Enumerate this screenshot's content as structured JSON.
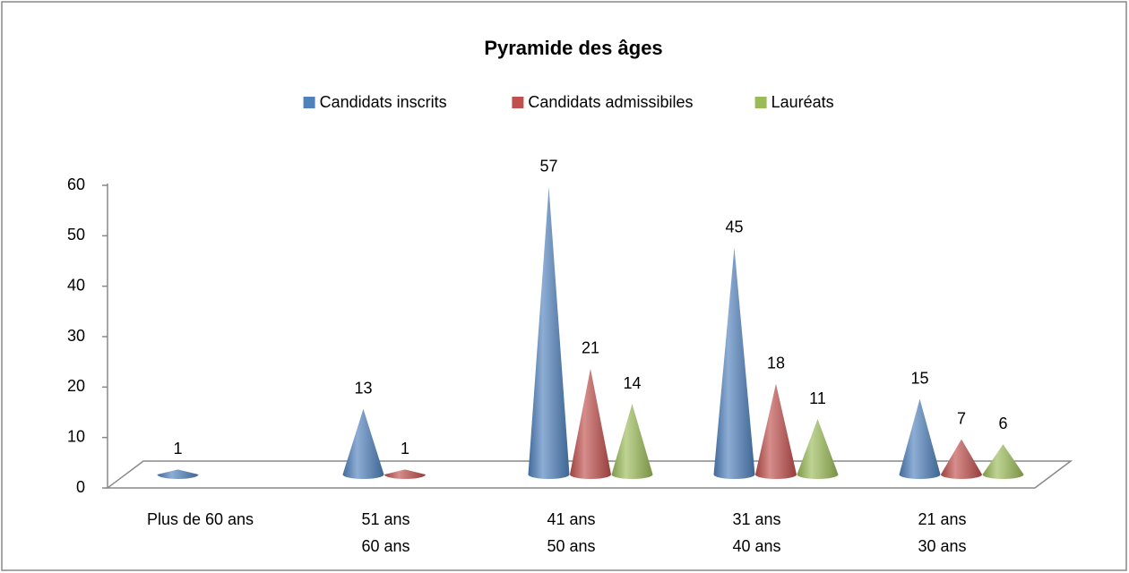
{
  "chart_data": {
    "type": "cone",
    "title": "Pyramide des âges",
    "categories": [
      "Plus de 60 ans",
      "51 ans\n60 ans",
      "41 ans\n50 ans",
      "31 ans\n40 ans",
      "21 ans\n30 ans"
    ],
    "series": [
      {
        "name": "Candidats inscrits",
        "color": "#4f81bd",
        "values": [
          1,
          13,
          57,
          45,
          15
        ]
      },
      {
        "name": "Candidats admissibiles",
        "color": "#c0504d",
        "values": [
          null,
          1,
          21,
          18,
          7
        ]
      },
      {
        "name": "Lauréats",
        "color": "#9bbb59",
        "values": [
          null,
          null,
          14,
          11,
          6
        ]
      }
    ],
    "ylim": [
      0,
      60
    ],
    "yticks": [
      0,
      10,
      20,
      30,
      40,
      50,
      60
    ],
    "grid": false,
    "legend": "top"
  }
}
